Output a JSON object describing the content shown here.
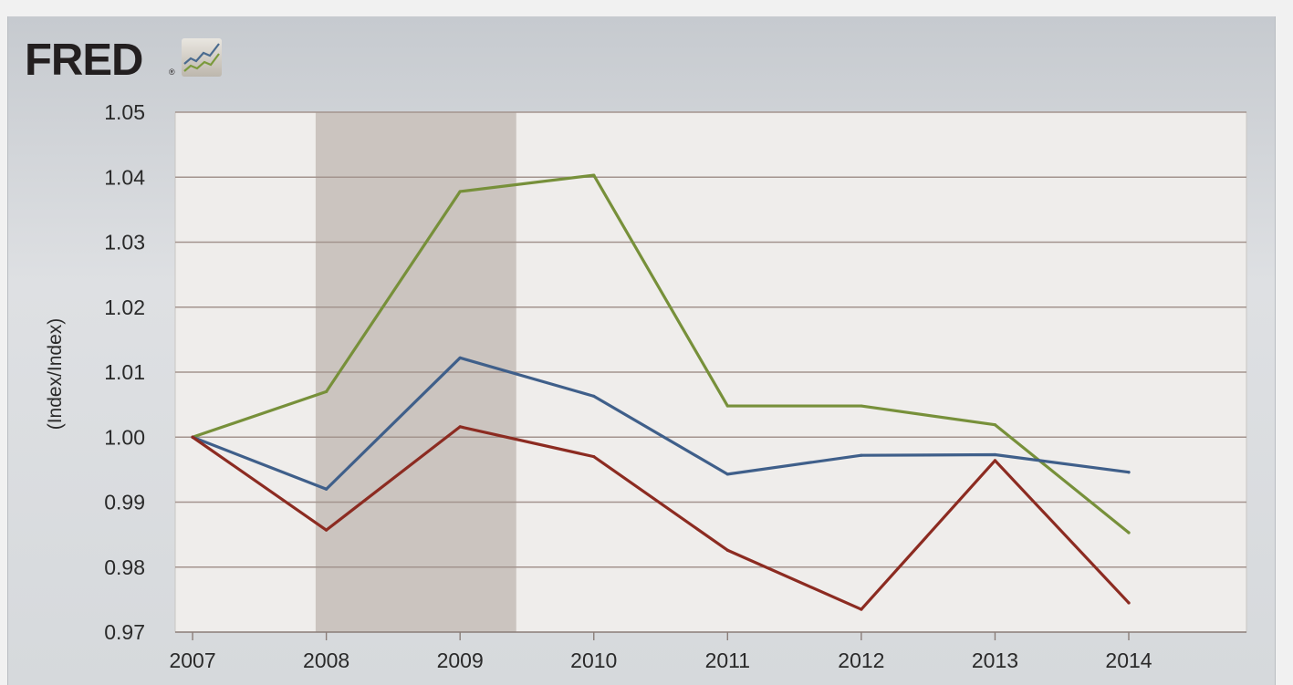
{
  "logo": {
    "text": "FRED",
    "reg_mark": "®",
    "icon": "chart-lines-icon"
  },
  "chart_data": {
    "type": "line",
    "title": "",
    "xlabel": "",
    "ylabel": "(Index/Index)",
    "x": [
      2007,
      2008,
      2009,
      2010,
      2011,
      2012,
      2013,
      2014
    ],
    "x_tick_labels": [
      "2007",
      "2008",
      "2009",
      "2010",
      "2011",
      "2012",
      "2013",
      "2014"
    ],
    "xlim": [
      2006.87,
      2014.88
    ],
    "ylim": [
      0.97,
      1.05
    ],
    "y_ticks": [
      0.97,
      0.98,
      0.99,
      1.0,
      1.01,
      1.02,
      1.03,
      1.04,
      1.05
    ],
    "y_tick_labels": [
      "0.97",
      "0.98",
      "0.99",
      "1.00",
      "1.01",
      "1.02",
      "1.03",
      "1.04",
      "1.05"
    ],
    "grid": true,
    "recession_band": {
      "start": 2007.92,
      "end": 2009.42,
      "color": "#cbc4bf"
    },
    "series": [
      {
        "color": "#77903a",
        "values": [
          1.0,
          1.007,
          1.0378,
          1.0403,
          1.0048,
          1.0048,
          1.0019,
          0.9853
        ]
      },
      {
        "color": "#3f5f8a",
        "values": [
          1.0,
          0.992,
          1.0122,
          1.0063,
          0.9943,
          0.9972,
          0.9973,
          0.9946
        ]
      },
      {
        "color": "#8c2b21",
        "values": [
          1.0,
          0.9857,
          1.0016,
          0.997,
          0.9826,
          0.9735,
          0.9964,
          0.9745
        ]
      }
    ]
  }
}
